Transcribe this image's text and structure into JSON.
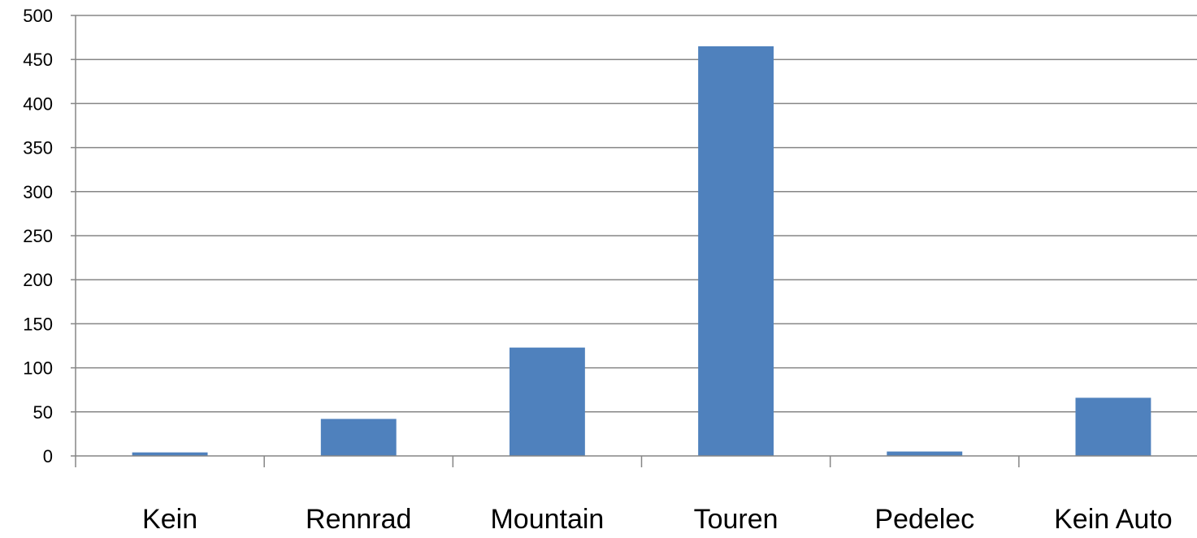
{
  "chart_data": {
    "type": "bar",
    "categories": [
      "Kein",
      "Rennrad",
      "Mountain",
      "Touren",
      "Pedelec",
      "Kein Auto"
    ],
    "values": [
      4,
      42,
      123,
      465,
      5,
      66
    ],
    "ylim": [
      0,
      500
    ],
    "yticks": [
      0,
      50,
      100,
      150,
      200,
      250,
      300,
      350,
      400,
      450,
      500
    ],
    "grid": true,
    "legend": "none",
    "colors": {
      "bar": "#4F81BD",
      "grid": "#868686",
      "axis": "#868686"
    }
  }
}
